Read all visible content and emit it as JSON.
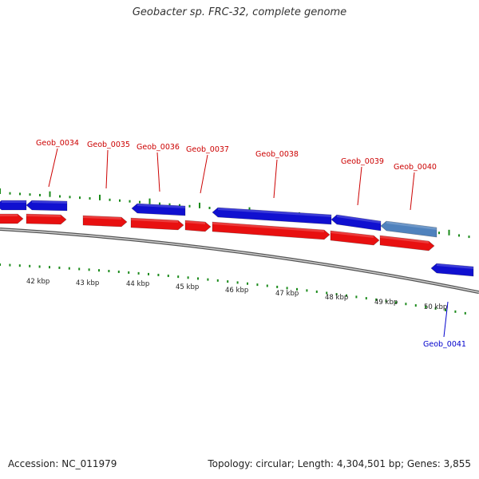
{
  "title": "Geobacter sp. FRC-32, complete genome",
  "footer": {
    "accession": "Accession: NC_011979",
    "summary": "Topology: circular; Length: 4,304,501 bp; Genes: 3,855"
  },
  "colors": {
    "forward_gene": "#1010d0",
    "forward_highlight": "#4f82bd",
    "reverse_gene": "#e81010",
    "label_red": "#cc0000",
    "label_blue": "#0000cc",
    "tick_green": "#1a8a1a",
    "backbone": "#888888"
  },
  "kbp_labels": [
    "42 kbp",
    "43 kbp",
    "44 kbp",
    "45 kbp",
    "46 kbp",
    "47 kbp",
    "48 kbp",
    "49 kbp",
    "50 kbp"
  ],
  "gene_labels": [
    {
      "name": "Geob_0034",
      "color": "red"
    },
    {
      "name": "Geob_0035",
      "color": "red"
    },
    {
      "name": "Geob_0036",
      "color": "red"
    },
    {
      "name": "Geob_0037",
      "color": "red"
    },
    {
      "name": "Geob_0038",
      "color": "red"
    },
    {
      "name": "Geob_0039",
      "color": "red"
    },
    {
      "name": "Geob_0040",
      "color": "red"
    },
    {
      "name": "Geob_0041",
      "color": "blue"
    }
  ]
}
